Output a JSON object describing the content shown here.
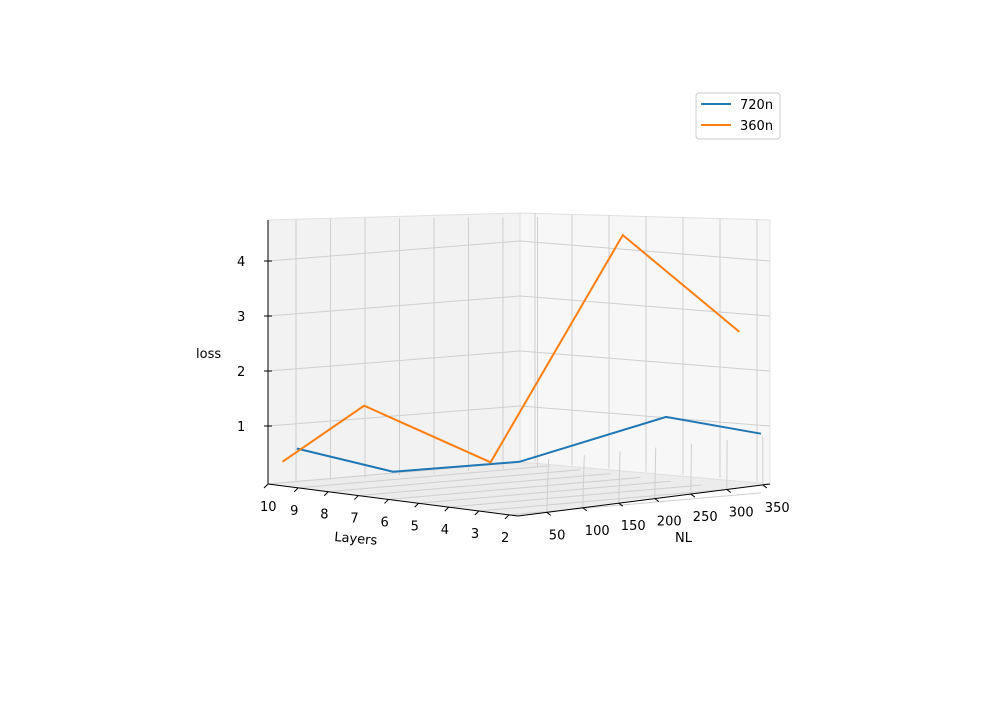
{
  "chart_data": {
    "type": "line",
    "projection": "3d",
    "xlabel": "Layers",
    "ylabel": "NL",
    "zlabel": "loss",
    "x_ticks": [
      "10",
      "9",
      "8",
      "7",
      "6",
      "5",
      "4",
      "3",
      "2"
    ],
    "y_ticks": [
      "50",
      "100",
      "150",
      "200",
      "250",
      "300",
      "350"
    ],
    "z_ticks": [
      "1",
      "2",
      "3",
      "4"
    ],
    "grid": true,
    "legend_position": "top-right",
    "colors": {
      "720n": "#1f77b4",
      "360n": "#ff7f0e"
    },
    "series": [
      {
        "name": "720n",
        "points": [
          {
            "layers": 10,
            "NL": 50,
            "loss": 0.6
          },
          {
            "layers": 8,
            "NL": 100,
            "loss": 0.25
          },
          {
            "layers": 5,
            "NL": 150,
            "loss": 0.55
          },
          {
            "layers": 3,
            "NL": 270,
            "loss": 1.3
          },
          {
            "layers": 2,
            "NL": 360,
            "loss": 0.9
          }
        ]
      },
      {
        "name": "360n",
        "points": [
          {
            "layers": 10,
            "NL": 30,
            "loss": 0.38
          },
          {
            "layers": 8,
            "NL": 60,
            "loss": 1.5
          },
          {
            "layers": 5,
            "NL": 110,
            "loss": 0.6
          },
          {
            "layers": 3,
            "NL": 210,
            "loss": 4.7
          },
          {
            "layers": 2,
            "NL": 330,
            "loss": 2.8
          }
        ]
      }
    ]
  }
}
